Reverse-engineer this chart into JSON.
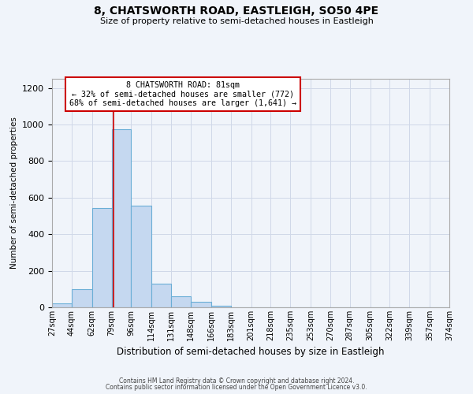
{
  "title": "8, CHATSWORTH ROAD, EASTLEIGH, SO50 4PE",
  "subtitle": "Size of property relative to semi-detached houses in Eastleigh",
  "xlabel": "Distribution of semi-detached houses by size in Eastleigh",
  "ylabel": "Number of semi-detached properties",
  "footer_line1": "Contains HM Land Registry data © Crown copyright and database right 2024.",
  "footer_line2": "Contains public sector information licensed under the Open Government Licence v3.0.",
  "bar_left_edges": [
    27,
    44,
    62,
    79,
    96,
    114,
    131,
    148,
    166,
    183,
    201,
    218,
    235,
    253,
    270,
    287,
    305,
    322,
    339,
    357
  ],
  "bar_widths": [
    17,
    18,
    17,
    17,
    18,
    17,
    17,
    18,
    17,
    18,
    17,
    17,
    18,
    17,
    17,
    18,
    17,
    17,
    18,
    17
  ],
  "bar_heights": [
    20,
    100,
    545,
    975,
    555,
    130,
    62,
    30,
    10,
    0,
    0,
    0,
    0,
    0,
    0,
    0,
    0,
    0,
    0,
    0
  ],
  "bar_color": "#c5d8f0",
  "bar_edge_color": "#6aaed6",
  "property_size": 81,
  "property_line_color": "#cc0000",
  "annotation_line1": "8 CHATSWORTH ROAD: 81sqm",
  "annotation_line2": "← 32% of semi-detached houses are smaller (772)",
  "annotation_line3": "68% of semi-detached houses are larger (1,641) →",
  "annotation_box_edge_color": "#cc0000",
  "ylim": [
    0,
    1250
  ],
  "yticks": [
    0,
    200,
    400,
    600,
    800,
    1000,
    1200
  ],
  "xtick_labels": [
    "27sqm",
    "44sqm",
    "62sqm",
    "79sqm",
    "96sqm",
    "114sqm",
    "131sqm",
    "148sqm",
    "166sqm",
    "183sqm",
    "201sqm",
    "218sqm",
    "235sqm",
    "253sqm",
    "270sqm",
    "287sqm",
    "305sqm",
    "322sqm",
    "339sqm",
    "357sqm",
    "374sqm"
  ],
  "grid_color": "#d0d8e8",
  "background_color": "#f0f4fa"
}
